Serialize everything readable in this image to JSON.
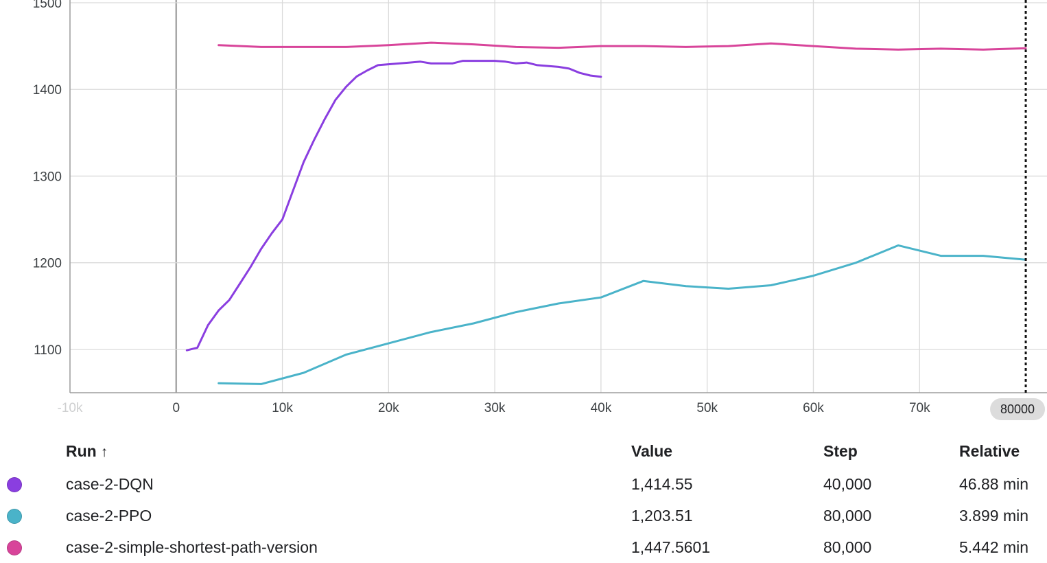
{
  "chart_data": {
    "type": "line",
    "title": "",
    "xlabel": "",
    "ylabel": "",
    "xlim": [
      -10000,
      82000
    ],
    "ylim": [
      1050,
      1500
    ],
    "x_ticks": [
      {
        "value": -10000,
        "label": "-10k"
      },
      {
        "value": 0,
        "label": "0"
      },
      {
        "value": 10000,
        "label": "10k"
      },
      {
        "value": 20000,
        "label": "20k"
      },
      {
        "value": 30000,
        "label": "30k"
      },
      {
        "value": 40000,
        "label": "40k"
      },
      {
        "value": 50000,
        "label": "50k"
      },
      {
        "value": 60000,
        "label": "60k"
      },
      {
        "value": 70000,
        "label": "70k"
      }
    ],
    "y_ticks": [
      {
        "value": 1100,
        "label": "1100"
      },
      {
        "value": 1200,
        "label": "1200"
      },
      {
        "value": 1300,
        "label": "1300"
      },
      {
        "value": 1400,
        "label": "1400"
      },
      {
        "value": 1500,
        "label": "1500"
      }
    ],
    "grid": true,
    "hover_step": {
      "value": 80000,
      "label": "80000"
    },
    "series": [
      {
        "name": "case-2-DQN",
        "color": "#8a3ee0",
        "x": [
          1000,
          2000,
          3000,
          4000,
          5000,
          6000,
          7000,
          8000,
          9000,
          10000,
          11000,
          12000,
          13000,
          14000,
          15000,
          16000,
          17000,
          18000,
          19000,
          20000,
          21000,
          22000,
          23000,
          24000,
          25000,
          26000,
          27000,
          28000,
          29000,
          30000,
          31000,
          32000,
          33000,
          34000,
          35000,
          36000,
          37000,
          38000,
          39000,
          40000
        ],
        "y": [
          1099,
          1102,
          1128,
          1145,
          1157,
          1176,
          1195,
          1216,
          1234,
          1250,
          1283,
          1316,
          1342,
          1366,
          1388,
          1403,
          1415,
          1422,
          1428,
          1429,
          1430,
          1431,
          1432,
          1430,
          1430,
          1430,
          1433,
          1433,
          1433,
          1433,
          1432,
          1430,
          1431,
          1428,
          1427,
          1426,
          1424,
          1419,
          1416,
          1414.55
        ]
      },
      {
        "name": "case-2-PPO",
        "color": "#4ab3c9",
        "x": [
          4000,
          8000,
          12000,
          16000,
          20000,
          24000,
          28000,
          32000,
          36000,
          40000,
          44000,
          48000,
          52000,
          56000,
          60000,
          64000,
          68000,
          72000,
          76000,
          80000
        ],
        "y": [
          1061,
          1060,
          1073,
          1094,
          1107,
          1120,
          1130,
          1143,
          1153,
          1160,
          1179,
          1173,
          1170,
          1174,
          1185,
          1200,
          1220,
          1208,
          1208,
          1203.51
        ]
      },
      {
        "name": "case-2-simple-shortest-path-version",
        "color": "#d8449a",
        "x": [
          4000,
          8000,
          12000,
          16000,
          20000,
          24000,
          28000,
          32000,
          36000,
          40000,
          44000,
          48000,
          52000,
          56000,
          60000,
          64000,
          68000,
          72000,
          76000,
          80000
        ],
        "y": [
          1451,
          1449,
          1449,
          1449,
          1451,
          1454,
          1452,
          1449,
          1448,
          1450,
          1450,
          1449,
          1450,
          1453,
          1450,
          1447,
          1446,
          1447,
          1446,
          1447.5601
        ]
      }
    ]
  },
  "legend_table": {
    "headers": {
      "run": "Run",
      "value": "Value",
      "step": "Step",
      "relative": "Relative"
    },
    "sort_icon": "arrow-up-icon",
    "rows": [
      {
        "run": "case-2-DQN",
        "value": "1,414.55",
        "step": "40,000",
        "relative": "46.88 min",
        "color": "#8a3ee0"
      },
      {
        "run": "case-2-PPO",
        "value": "1,203.51",
        "step": "80,000",
        "relative": "3.899 min",
        "color": "#4ab3c9"
      },
      {
        "run": "case-2-simple-shortest-path-version",
        "value": "1,447.5601",
        "step": "80,000",
        "relative": "5.442 min",
        "color": "#d8449a"
      }
    ]
  }
}
